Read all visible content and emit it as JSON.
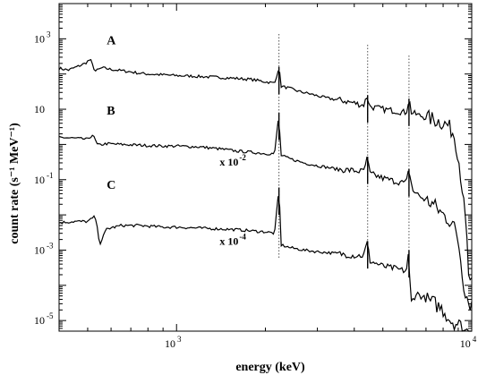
{
  "chart_data": {
    "type": "line",
    "title": "",
    "xlabel": "energy (keV)",
    "ylabel": "count rate (s⁻¹ MeV⁻¹)",
    "xscale": "log",
    "yscale": "log",
    "xlim": [
      400,
      10000
    ],
    "ylim": [
      5e-06,
      10000
    ],
    "xticks": [
      {
        "value": 1000,
        "base": "10",
        "exp": "3"
      },
      {
        "value": 10000,
        "base": "10",
        "exp": "4"
      }
    ],
    "yticks": [
      {
        "value": 1000,
        "base": "10",
        "exp": "3"
      },
      {
        "value": 10,
        "base": "10",
        "exp": ""
      },
      {
        "value": 0.1,
        "base": "10",
        "exp": "-1"
      },
      {
        "value": 0.001,
        "base": "10",
        "exp": "-3"
      },
      {
        "value": 1e-05,
        "base": "10",
        "exp": "-5"
      }
    ],
    "reference_lines_x": [
      2223,
      4440,
      6130
    ],
    "series": [
      {
        "name": "A",
        "points": [
          [
            400,
            145
          ],
          [
            430,
            130
          ],
          [
            460,
            160
          ],
          [
            490,
            200
          ],
          [
            510,
            260
          ],
          [
            530,
            120
          ],
          [
            560,
            150
          ],
          [
            600,
            135
          ],
          [
            650,
            125
          ],
          [
            700,
            115
          ],
          [
            750,
            105
          ],
          [
            800,
            100
          ],
          [
            900,
            95
          ],
          [
            1000,
            90
          ],
          [
            1100,
            88
          ],
          [
            1200,
            85
          ],
          [
            1400,
            80
          ],
          [
            1600,
            75
          ],
          [
            1800,
            70
          ],
          [
            2000,
            60
          ],
          [
            2150,
            55
          ],
          [
            2223,
            160
          ],
          [
            2260,
            45
          ],
          [
            2400,
            40
          ],
          [
            2600,
            32
          ],
          [
            2800,
            28
          ],
          [
            3000,
            24
          ],
          [
            3300,
            20
          ],
          [
            3600,
            18
          ],
          [
            4000,
            15
          ],
          [
            4300,
            13
          ],
          [
            4440,
            25
          ],
          [
            4500,
            12
          ],
          [
            5000,
            10
          ],
          [
            5500,
            9
          ],
          [
            6000,
            8
          ],
          [
            6130,
            20
          ],
          [
            6250,
            8
          ],
          [
            6700,
            6.5
          ],
          [
            7200,
            5.5
          ],
          [
            7800,
            4.5
          ],
          [
            8300,
            3.5
          ],
          [
            8700,
            2
          ],
          [
            9000,
            0.5
          ],
          [
            9300,
            0.05
          ],
          [
            9600,
            0.003
          ],
          [
            9800,
            0.0001
          ]
        ],
        "label": "A",
        "label_x": 580,
        "label_y": 700
      },
      {
        "name": "B",
        "points": [
          [
            400,
            1.6
          ],
          [
            450,
            1.5
          ],
          [
            500,
            1.4
          ],
          [
            520,
            1.9
          ],
          [
            540,
            0.95
          ],
          [
            580,
            1.05
          ],
          [
            650,
            1.0
          ],
          [
            750,
            0.95
          ],
          [
            900,
            0.9
          ],
          [
            1000,
            0.9
          ],
          [
            1200,
            0.85
          ],
          [
            1400,
            0.75
          ],
          [
            1600,
            0.65
          ],
          [
            1800,
            0.6
          ],
          [
            2000,
            0.55
          ],
          [
            2150,
            0.55
          ],
          [
            2223,
            8
          ],
          [
            2250,
            0.5
          ],
          [
            2400,
            0.4
          ],
          [
            2700,
            0.3
          ],
          [
            3000,
            0.25
          ],
          [
            3500,
            0.2
          ],
          [
            4000,
            0.18
          ],
          [
            4300,
            0.17
          ],
          [
            4440,
            0.45
          ],
          [
            4500,
            0.15
          ],
          [
            5000,
            0.11
          ],
          [
            5500,
            0.09
          ],
          [
            6000,
            0.08
          ],
          [
            6130,
            0.2
          ],
          [
            6300,
            0.05
          ],
          [
            6800,
            0.03
          ],
          [
            7400,
            0.02
          ],
          [
            8000,
            0.01
          ],
          [
            8600,
            0.006
          ],
          [
            9000,
            0.002
          ],
          [
            9400,
            0.0001
          ],
          [
            9800,
            3e-05
          ]
        ],
        "label": "B",
        "label_x": 580,
        "label_y": 7,
        "annotation": {
          "text": "x 10",
          "exp": "-2",
          "x": 1400,
          "y": 0.25
        }
      },
      {
        "name": "C",
        "points": [
          [
            400,
            0.006
          ],
          [
            450,
            0.0065
          ],
          [
            500,
            0.0065
          ],
          [
            530,
            0.009
          ],
          [
            550,
            0.0015
          ],
          [
            580,
            0.004
          ],
          [
            650,
            0.005
          ],
          [
            750,
            0.005
          ],
          [
            900,
            0.0045
          ],
          [
            1000,
            0.0045
          ],
          [
            1200,
            0.0042
          ],
          [
            1400,
            0.004
          ],
          [
            1600,
            0.0038
          ],
          [
            1800,
            0.0035
          ],
          [
            2000,
            0.0033
          ],
          [
            2150,
            0.003
          ],
          [
            2223,
            0.06
          ],
          [
            2260,
            0.0014
          ],
          [
            2400,
            0.0012
          ],
          [
            2700,
            0.001
          ],
          [
            3000,
            0.0009
          ],
          [
            3500,
            0.0008
          ],
          [
            4000,
            0.0007
          ],
          [
            4300,
            0.0007
          ],
          [
            4440,
            0.0018
          ],
          [
            4500,
            0.0005
          ],
          [
            5000,
            0.00035
          ],
          [
            5500,
            0.0003
          ],
          [
            6000,
            0.00025
          ],
          [
            6130,
            0.001
          ],
          [
            6200,
            3e-05
          ],
          [
            6500,
            6e-05
          ],
          [
            7000,
            4e-05
          ],
          [
            7500,
            3e-05
          ],
          [
            8000,
            2e-05
          ],
          [
            8500,
            1e-05
          ],
          [
            9000,
            8e-06
          ],
          [
            9500,
            5e-06
          ]
        ],
        "label": "C",
        "label_x": 580,
        "label_y": 0.055,
        "annotation": {
          "text": "x 10",
          "exp": "-4",
          "x": 1400,
          "y": 0.0014
        }
      }
    ]
  }
}
